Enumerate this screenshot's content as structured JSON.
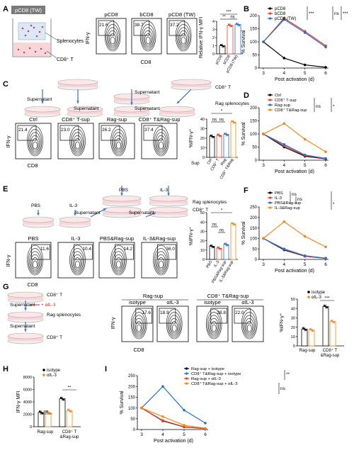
{
  "colors": {
    "black": "#000000",
    "red": "#e8402a",
    "blue": "#2a6ed0",
    "orange": "#f08a1c",
    "gray": "#888888",
    "well_fill": "#f6d6d9"
  },
  "panels": {
    "A": {
      "letter": "A",
      "diagram_title": "pCD8 (TW)",
      "diagram_labels": [
        "Splenocytes",
        "CD8⁺ T"
      ],
      "flow_titles": [
        "pCD8",
        "bCD8",
        "pCD8 (TW)"
      ],
      "flow_values": [
        "21.6",
        "38.7",
        "37.2"
      ],
      "flow_ylabel": "IFN-γ",
      "flow_xlabel": "CD8",
      "bar_ylabel": "Relative IFN-γ MFI",
      "bar_sig": [
        "***",
        "**",
        "ns"
      ]
    },
    "B": {
      "letter": "B",
      "legend": [
        "pCD8",
        "bCD8",
        "pCD8 (TW)"
      ],
      "sig": [
        "***",
        "ns",
        "***"
      ],
      "ylabel": "% Survival",
      "xlabel": "Post activation (d)"
    },
    "C": {
      "letter": "C",
      "diagram_labels": [
        "CD8⁺ T",
        "Supernatant",
        "Supernatant",
        "Rag splenocytes",
        "Supernatant",
        "Supernatant"
      ],
      "flow_titles": [
        "Ctrl",
        "CD8⁺ T-sup",
        "Rag-sup",
        "CD8⁺ T&Rag-sup"
      ],
      "flow_values": [
        "21.4",
        "23.0",
        "26.2",
        "37.4"
      ],
      "flow_ylabel": "IFN-γ",
      "flow_xlabel": "CD8",
      "bar_ylabel": "%IFN-γ⁺",
      "bar_sig": [
        "*",
        "ns",
        "ns"
      ],
      "bar_sup_label": "Sup",
      "bar_cats": [
        "Ctrl",
        "CD8⁺ T",
        "Rag",
        "CD8⁺ T&Rag"
      ]
    },
    "D": {
      "letter": "D",
      "legend": [
        "Ctrl",
        "CD8⁺ T-sup",
        "Rag-sup",
        "CD8⁺ T&Rag-sup"
      ],
      "sig": [
        "ns",
        "*"
      ],
      "ylabel": "% Survival",
      "xlabel": "Post activation (d)"
    },
    "E": {
      "letter": "E",
      "diagram_labels": [
        "PBS",
        "IL-3",
        "PBS",
        "IL-3",
        "Supernatant",
        "Supernatant",
        "Rag splenocytes",
        "CD8⁺ T"
      ],
      "flow_titles": [
        "PBS",
        "IL-3",
        "PBS&Rag-sup",
        "IL-3&Rag-sup"
      ],
      "flow_values": [
        "11.6",
        "10.4",
        "14.2",
        "36.0"
      ],
      "flow_ylabel": "IFN-γ",
      "flow_xlabel": "CD8",
      "bar_ylabel": "%IFN-γ⁺",
      "bar_sig": [
        "*",
        "ns",
        "ns"
      ],
      "bar_cats": [
        "PBS",
        "IL-3",
        "PBS&Rag-sup",
        "IL-3&Rag-sup"
      ]
    },
    "F": {
      "letter": "F",
      "legend": [
        "PBS",
        "IL-3",
        "PBS&Rag-sup",
        "IL-3&Rag-sup"
      ],
      "sig": [
        "ns",
        "ns",
        "*"
      ],
      "ylabel": "% Survival",
      "xlabel": "Post activation (d)"
    },
    "G": {
      "letter": "G",
      "diagram_labels": [
        "CD8⁺ T",
        "Supernatant",
        "+ αIL-3",
        "Rag splenocytes",
        "Supernatant",
        "CD8⁺ T"
      ],
      "group_titles": [
        "Rag-sup",
        "CD8⁺ T&Rag-sup"
      ],
      "flow_titles": [
        "isotype",
        "αIL-3",
        "isotype",
        "αIL-3"
      ],
      "flow_values": [
        "17.6",
        "18.9",
        "38.8",
        "22.0"
      ],
      "flow_ylabel": "IFN-γ",
      "flow_xlabel": "CD8",
      "bar_ylabel": "%IFN-γ⁺",
      "bar_legend": [
        "isotype",
        "αIL-3"
      ],
      "bar_sig": [
        "***"
      ],
      "bar_cats": [
        "Rag-sup",
        "CD8⁺ T",
        "&Rag-sup"
      ]
    },
    "H": {
      "letter": "H",
      "legend": [
        "isotype",
        "αIL-3"
      ],
      "ylabel": "IFN-γ MFI",
      "sig": [
        "ns",
        "**"
      ],
      "cats": [
        "Rag-sup",
        "CD8⁺ T",
        "&Rag-sup"
      ]
    },
    "I": {
      "letter": "I",
      "legend": [
        "Rag-sup + isotype",
        "CD8⁺ T&Rag-sup + isotype",
        "Rag-sup + αIL-3",
        "CD8⁺ T&Rag-sup + αIL-3"
      ],
      "sig": [
        "**",
        "ns"
      ],
      "ylabel": "% Survival",
      "xlabel": "Post activation (d)"
    }
  },
  "chart_data": [
    {
      "panel": "A",
      "type": "bar",
      "categories": [
        "pCD8",
        "bCD8",
        "pCD8 (TW)"
      ],
      "values": [
        1.0,
        3.5,
        3.6
      ],
      "ylabel": "Relative IFN-γ MFI",
      "ylim": [
        0,
        4
      ],
      "yticks": [
        0,
        1,
        2,
        3,
        4
      ],
      "colors": [
        "#000000",
        "#e8402a",
        "#2a6ed0"
      ]
    },
    {
      "panel": "B",
      "type": "line",
      "x": [
        3,
        4,
        5,
        6
      ],
      "xticks": [
        3,
        4,
        5,
        6
      ],
      "ylim": [
        0,
        200
      ],
      "yticks": [
        0,
        50,
        100,
        150,
        200
      ],
      "xlabel": "Post activation (d)",
      "ylabel": "% Survival",
      "series": [
        {
          "name": "pCD8",
          "values": [
            100,
            38,
            12,
            3
          ],
          "color": "#000000"
        },
        {
          "name": "bCD8",
          "values": [
            100,
            190,
            140,
            85
          ],
          "color": "#e8402a"
        },
        {
          "name": "pCD8 (TW)",
          "values": [
            100,
            185,
            135,
            80
          ],
          "color": "#2a6ed0"
        }
      ]
    },
    {
      "panel": "C",
      "type": "bar",
      "categories": [
        "Ctrl",
        "CD8⁺ T",
        "Rag",
        "CD8⁺ T&Rag"
      ],
      "values": [
        22,
        23,
        24,
        37
      ],
      "ylabel": "%IFN-γ⁺",
      "ylim": [
        0,
        40
      ],
      "yticks": [
        0,
        10,
        20,
        30,
        40
      ],
      "colors": [
        "#000000",
        "#e8402a",
        "#2a6ed0",
        "#f08a1c"
      ]
    },
    {
      "panel": "D",
      "type": "line",
      "x": [
        3,
        4,
        5,
        6
      ],
      "xticks": [
        3,
        4,
        5,
        6
      ],
      "ylim": [
        0,
        200
      ],
      "yticks": [
        0,
        50,
        100,
        150,
        200
      ],
      "xlabel": "Post activation (d)",
      "ylabel": "% Survival",
      "series": [
        {
          "name": "Ctrl",
          "values": [
            100,
            50,
            15,
            5
          ],
          "color": "#000000"
        },
        {
          "name": "CD8⁺ T-sup",
          "values": [
            100,
            55,
            18,
            6
          ],
          "color": "#e8402a"
        },
        {
          "name": "Rag-sup",
          "values": [
            100,
            60,
            20,
            7
          ],
          "color": "#2a6ed0"
        },
        {
          "name": "CD8⁺ T&Rag-sup",
          "values": [
            100,
            140,
            80,
            32
          ],
          "color": "#f08a1c"
        }
      ]
    },
    {
      "panel": "E",
      "type": "bar",
      "categories": [
        "PBS",
        "IL-3",
        "PBS&Rag-sup",
        "IL-3&Rag-sup"
      ],
      "values": [
        14,
        12,
        16,
        38
      ],
      "ylabel": "%IFN-γ⁺",
      "ylim": [
        0,
        50
      ],
      "yticks": [
        0,
        10,
        20,
        30,
        40,
        50
      ],
      "colors": [
        "#000000",
        "#e8402a",
        "#2a6ed0",
        "#f08a1c"
      ]
    },
    {
      "panel": "F",
      "type": "line",
      "x": [
        3,
        4,
        5,
        6
      ],
      "xticks": [
        3,
        4,
        5,
        6
      ],
      "ylim": [
        0,
        250
      ],
      "yticks": [
        0,
        50,
        100,
        150,
        200,
        250
      ],
      "xlabel": "Post activation (d)",
      "ylabel": "% Survival",
      "series": [
        {
          "name": "PBS",
          "values": [
            100,
            45,
            15,
            5
          ],
          "color": "#000000"
        },
        {
          "name": "IL-3",
          "values": [
            100,
            48,
            16,
            5
          ],
          "color": "#e8402a"
        },
        {
          "name": "PBS&Rag-sup",
          "values": [
            100,
            50,
            18,
            6
          ],
          "color": "#2a6ed0"
        },
        {
          "name": "IL-3&Rag-sup",
          "values": [
            100,
            180,
            110,
            60
          ],
          "color": "#f08a1c"
        }
      ]
    },
    {
      "panel": "G",
      "type": "bar",
      "categories": [
        "Rag-sup",
        "CD8⁺ T&Rag-sup"
      ],
      "series": [
        {
          "name": "isotype",
          "values": [
            18,
            42
          ],
          "color": "#000000"
        },
        {
          "name": "αIL-3",
          "values": [
            17,
            26
          ],
          "color": "#f08a1c"
        }
      ],
      "ylabel": "%IFN-γ⁺",
      "ylim": [
        0,
        50
      ],
      "yticks": [
        0,
        10,
        20,
        30,
        40,
        50
      ]
    },
    {
      "panel": "H",
      "type": "bar",
      "categories": [
        "Rag-sup",
        "CD8⁺ T&Rag-sup"
      ],
      "series": [
        {
          "name": "isotype",
          "values": [
            2300,
            4500
          ],
          "color": "#000000"
        },
        {
          "name": "αIL-3",
          "values": [
            2300,
            2600
          ],
          "color": "#f08a1c"
        }
      ],
      "ylabel": "IFN-γ MFI",
      "ylim": [
        0,
        8000
      ],
      "yticks": [
        0,
        2000,
        4000,
        6000,
        8000
      ]
    },
    {
      "panel": "I",
      "type": "line",
      "x": [
        3,
        4,
        5,
        6
      ],
      "xticks": [
        3,
        4,
        5,
        6
      ],
      "ylim": [
        0,
        250
      ],
      "yticks": [
        0,
        50,
        100,
        150,
        200,
        250
      ],
      "xlabel": "Post activation (d)",
      "ylabel": "% Survival",
      "series": [
        {
          "name": "Rag-sup + isotype",
          "values": [
            100,
            40,
            12,
            4
          ],
          "color": "#000000"
        },
        {
          "name": "CD8⁺ T&Rag-sup + isotype",
          "values": [
            100,
            200,
            90,
            30
          ],
          "color": "#2a6ed0"
        },
        {
          "name": "Rag-sup + αIL-3",
          "values": [
            100,
            42,
            13,
            4
          ],
          "color": "#e8402a"
        },
        {
          "name": "CD8⁺ T&Rag-sup + αIL-3",
          "values": [
            100,
            60,
            20,
            6
          ],
          "color": "#f08a1c"
        }
      ]
    }
  ]
}
